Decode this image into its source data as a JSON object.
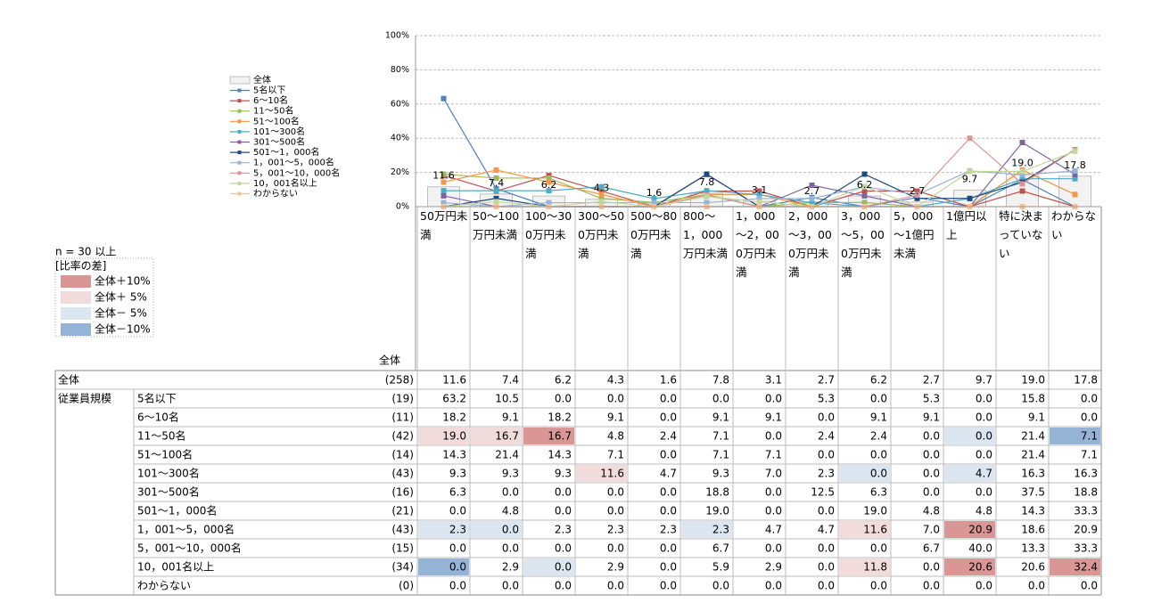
{
  "chart_data": {
    "type": "line",
    "ylim": [
      0,
      100
    ],
    "yticks": [
      {
        "value": 0,
        "label": "0%"
      },
      {
        "value": 20,
        "label": "20%"
      },
      {
        "value": 40,
        "label": "40%"
      },
      {
        "value": 60,
        "label": "60%"
      },
      {
        "value": 80,
        "label": "80%"
      },
      {
        "value": 100,
        "label": "100%"
      }
    ],
    "grid": true,
    "categories": [
      "50万円未満",
      "50～100万円未満",
      "100～300万円未満",
      "300～500万円未満",
      "500～800万円未満",
      "800～1，000万円未満",
      "1，000～2，000万円未満",
      "2，000～3，000万円未満",
      "3，000～5，000万円未満",
      "5，000～1億円未満",
      "1億円以上",
      "特に決まっていない",
      "わからない"
    ],
    "bar_series": {
      "name": "全体",
      "color": "#f2f2f2",
      "n": "(258)",
      "values": [
        11.6,
        7.4,
        6.2,
        4.3,
        1.6,
        7.8,
        3.1,
        2.7,
        6.2,
        2.7,
        9.7,
        19.0,
        17.8
      ],
      "value_labels": [
        "11.6",
        "7.4",
        "6.2",
        "4.3",
        "1.6",
        "7.8",
        "3.1",
        "2.7",
        "6.2",
        "2.7",
        "9.7",
        "19.0",
        "17.8"
      ]
    },
    "series": [
      {
        "name": "5名以下",
        "color": "#4f81bd",
        "n": "(19)",
        "values": [
          63.2,
          10.5,
          0,
          0,
          0,
          0,
          0,
          5.3,
          0,
          5.3,
          0,
          15.8,
          0
        ],
        "value_labels": [
          "63.2",
          "10.5",
          "0.0",
          "0.0",
          "0.0",
          "0.0",
          "0.0",
          "5.3",
          "0.0",
          "5.3",
          "0.0",
          "15.8",
          "0.0"
        ]
      },
      {
        "name": "6～10名",
        "color": "#c0504d",
        "n": "(11)",
        "values": [
          18.2,
          9.1,
          18.2,
          9.1,
          0,
          9.1,
          9.1,
          0,
          9.1,
          9.1,
          0,
          9.1,
          0
        ],
        "value_labels": [
          "18.2",
          "9.1",
          "18.2",
          "9.1",
          "0.0",
          "9.1",
          "9.1",
          "0.0",
          "9.1",
          "9.1",
          "0.0",
          "9.1",
          "0.0"
        ]
      },
      {
        "name": "11～50名",
        "color": "#9bbb59",
        "n": "(42)",
        "values": [
          19.0,
          16.7,
          16.7,
          4.8,
          2.4,
          7.1,
          0,
          2.4,
          2.4,
          0,
          0,
          21.4,
          7.1
        ],
        "value_labels": [
          "19.0",
          "16.7",
          "16.7",
          "4.8",
          "2.4",
          "7.1",
          "0.0",
          "2.4",
          "2.4",
          "0.0",
          "0.0",
          "21.4",
          "7.1"
        ],
        "shade": [
          1,
          1,
          0,
          null,
          null,
          null,
          null,
          null,
          null,
          null,
          2,
          null,
          3
        ]
      },
      {
        "name": "51～100名",
        "color": "#f79646",
        "n": "(14)",
        "values": [
          14.3,
          21.4,
          14.3,
          7.1,
          0,
          7.1,
          7.1,
          0,
          0,
          0,
          0,
          21.4,
          7.1
        ],
        "value_labels": [
          "14.3",
          "21.4",
          "14.3",
          "7.1",
          "0.0",
          "7.1",
          "7.1",
          "0.0",
          "0.0",
          "0.0",
          "0.0",
          "21.4",
          "7.1"
        ]
      },
      {
        "name": "101～300名",
        "color": "#4bacc6",
        "n": "(43)",
        "values": [
          9.3,
          9.3,
          9.3,
          11.6,
          4.7,
          9.3,
          7.0,
          2.3,
          0,
          0,
          4.7,
          16.3,
          16.3
        ],
        "value_labels": [
          "9.3",
          "9.3",
          "9.3",
          "11.6",
          "4.7",
          "9.3",
          "7.0",
          "2.3",
          "0.0",
          "0.0",
          "4.7",
          "16.3",
          "16.3"
        ],
        "shade": [
          null,
          null,
          null,
          1,
          null,
          null,
          null,
          null,
          2,
          null,
          2,
          null,
          null
        ]
      },
      {
        "name": "301～500名",
        "color": "#8064a2",
        "n": "(16)",
        "values": [
          6.3,
          0,
          0,
          0,
          0,
          18.8,
          0,
          12.5,
          6.3,
          0,
          0,
          37.5,
          18.8
        ],
        "value_labels": [
          "6.3",
          "0.0",
          "0.0",
          "0.0",
          "0.0",
          "18.8",
          "0.0",
          "12.5",
          "6.3",
          "0.0",
          "0.0",
          "37.5",
          "18.8"
        ]
      },
      {
        "name": "501～1，000名",
        "color": "#1f497d",
        "n": "(21)",
        "values": [
          0,
          4.8,
          0,
          0,
          0,
          19.0,
          0,
          0,
          19.0,
          4.8,
          4.8,
          14.3,
          33.3
        ],
        "value_labels": [
          "0.0",
          "4.8",
          "0.0",
          "0.0",
          "0.0",
          "19.0",
          "0.0",
          "0.0",
          "19.0",
          "4.8",
          "4.8",
          "14.3",
          "33.3"
        ]
      },
      {
        "name": "1，001～5，000名",
        "color": "#95b3d7",
        "n": "(43)",
        "values": [
          2.3,
          0,
          2.3,
          2.3,
          2.3,
          2.3,
          4.7,
          4.7,
          11.6,
          7.0,
          20.9,
          18.6,
          20.9
        ],
        "value_labels": [
          "2.3",
          "0.0",
          "2.3",
          "2.3",
          "2.3",
          "2.3",
          "4.7",
          "4.7",
          "11.6",
          "7.0",
          "20.9",
          "18.6",
          "20.9"
        ],
        "shade": [
          2,
          2,
          null,
          null,
          null,
          2,
          null,
          null,
          1,
          null,
          0,
          null,
          null
        ]
      },
      {
        "name": "5，001～10，000名",
        "color": "#d99694",
        "n": "(15)",
        "values": [
          0,
          0,
          0,
          0,
          0,
          6.7,
          0,
          0,
          0,
          6.7,
          40.0,
          13.3,
          33.3
        ],
        "value_labels": [
          "0.0",
          "0.0",
          "0.0",
          "0.0",
          "0.0",
          "6.7",
          "0.0",
          "0.0",
          "0.0",
          "6.7",
          "40.0",
          "13.3",
          "33.3"
        ]
      },
      {
        "name": "10，001名以上",
        "color": "#c3d69b",
        "n": "(34)",
        "values": [
          0,
          2.9,
          0,
          2.9,
          0,
          5.9,
          2.9,
          0,
          11.8,
          0,
          20.6,
          20.6,
          32.4
        ],
        "value_labels": [
          "0.0",
          "2.9",
          "0.0",
          "2.9",
          "0.0",
          "5.9",
          "2.9",
          "0.0",
          "11.8",
          "0.0",
          "20.6",
          "20.6",
          "32.4"
        ],
        "shade": [
          3,
          null,
          2,
          null,
          null,
          null,
          null,
          null,
          1,
          null,
          0,
          null,
          0
        ]
      },
      {
        "name": "わからない",
        "color": "#fac090",
        "n": "(0)",
        "values": [
          0,
          0,
          0,
          0,
          0,
          0,
          0,
          0,
          0,
          0,
          0,
          0,
          0
        ],
        "value_labels": [
          "0.0",
          "0.0",
          "0.0",
          "0.0",
          "0.0",
          "0.0",
          "0.0",
          "0.0",
          "0.0",
          "0.0",
          "0.0",
          "0.0",
          "0.0"
        ]
      }
    ]
  },
  "table": {
    "count_header": "全体",
    "group_label": "従業員規模",
    "n_note": "n = 30 以上",
    "shade_title": "[比率の差]",
    "shade_legend": [
      {
        "label": "全体＋10%",
        "color": "#da9694"
      },
      {
        "label": "全体＋ 5%",
        "color": "#f2dcdb"
      },
      {
        "label": "全体－ 5%",
        "color": "#dce6f1"
      },
      {
        "label": "全体－10%",
        "color": "#95b3d7"
      }
    ]
  }
}
